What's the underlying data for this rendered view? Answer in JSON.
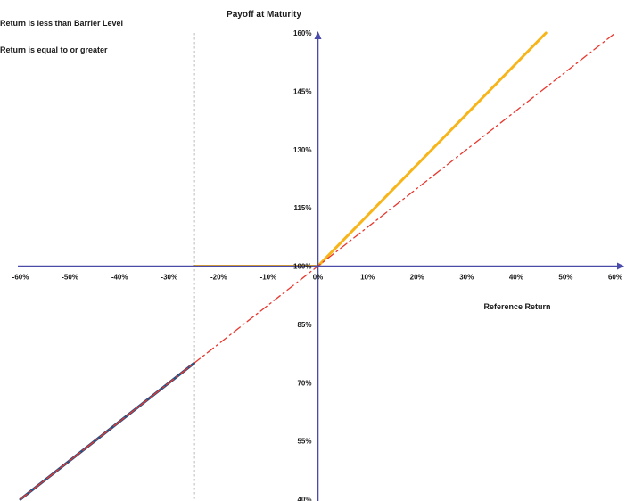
{
  "chart_data": {
    "type": "line",
    "title": "Payoff at Maturity",
    "xlabel": "Reference Return",
    "ylabel": "",
    "xlim": [
      -60,
      60
    ],
    "ylim": [
      40,
      160
    ],
    "x_ticks": [
      -60,
      -50,
      -40,
      -30,
      -20,
      -10,
      0,
      10,
      20,
      30,
      40,
      50,
      60
    ],
    "x_tick_labels": [
      "-60%",
      "-50%",
      "-40%",
      "-30%",
      "-20%",
      "-10%",
      "0%",
      "10%",
      "20%",
      "30%",
      "40%",
      "50%",
      "60%"
    ],
    "y_ticks": [
      40,
      55,
      70,
      85,
      100,
      115,
      130,
      145,
      160
    ],
    "y_tick_labels": [
      "40%",
      "55%",
      "70%",
      "85%",
      "100%",
      "115%",
      "130%",
      "145%",
      "160%"
    ],
    "barrier_x": -25,
    "grid": false,
    "legend_entries": [
      "Return is less than Barrier Level",
      "Return is equal to or greater"
    ],
    "series": [
      {
        "x": [
          -60,
          -25
        ],
        "y": [
          40,
          75
        ],
        "color": "#2f4f7f"
      },
      {
        "x": [
          -25,
          0,
          46
        ],
        "y": [
          100,
          100,
          160
        ],
        "color": "#f7b51a"
      },
      {
        "x": [
          -60,
          60
        ],
        "y": [
          40,
          160
        ],
        "color": "#e8372e",
        "dash": "dashdot"
      }
    ],
    "colors": {
      "axis": "#4b4baa",
      "barrier": "#222222"
    }
  }
}
